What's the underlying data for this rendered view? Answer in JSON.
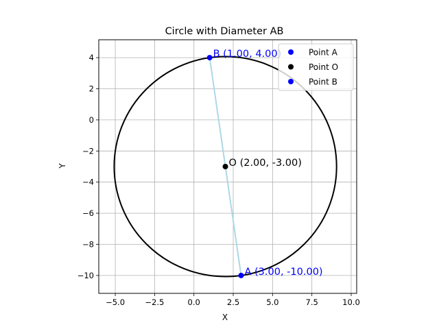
{
  "chart_data": {
    "type": "scatter",
    "title": "Circle with Diameter AB",
    "xlabel": "X",
    "ylabel": "Y",
    "xlim": [
      -6.05,
      10.35
    ],
    "ylim": [
      -11.15,
      5.15
    ],
    "xticks": [
      -5.0,
      -2.5,
      0.0,
      2.5,
      5.0,
      7.5,
      10.0
    ],
    "xtick_labels": [
      "−5.0",
      "−2.5",
      "0.0",
      "2.5",
      "5.0",
      "7.5",
      "10.0"
    ],
    "yticks": [
      -10,
      -8,
      -6,
      -4,
      -2,
      0,
      2,
      4
    ],
    "ytick_labels": [
      "−10",
      "−8",
      "−6",
      "−4",
      "−2",
      "0",
      "2",
      "4"
    ],
    "grid": true,
    "aspect": "equal",
    "legend_position": "top-right",
    "circle": {
      "center": [
        2,
        -3
      ],
      "radius": 7.071,
      "color": "#000000"
    },
    "diameter_segment": {
      "from": [
        3,
        -10
      ],
      "to": [
        1,
        4
      ],
      "color": "#add8e6"
    },
    "points": [
      {
        "name": "Point A",
        "x": 3,
        "y": -10,
        "color": "#0000ff",
        "label": "A (3.00, -10.00)",
        "label_color": "#0000ff"
      },
      {
        "name": "Point O",
        "x": 2,
        "y": -3,
        "color": "#000000",
        "label": "O (2.00, -3.00)",
        "label_color": "#000000"
      },
      {
        "name": "Point B",
        "x": 1,
        "y": 4,
        "color": "#0000ff",
        "label": "B (1.00, 4.00)",
        "label_color": "#0000ff"
      }
    ],
    "legend": [
      {
        "label": "Point A",
        "color": "#0000ff"
      },
      {
        "label": "Point O",
        "color": "#000000"
      },
      {
        "label": "Point B",
        "color": "#0000ff"
      }
    ]
  }
}
